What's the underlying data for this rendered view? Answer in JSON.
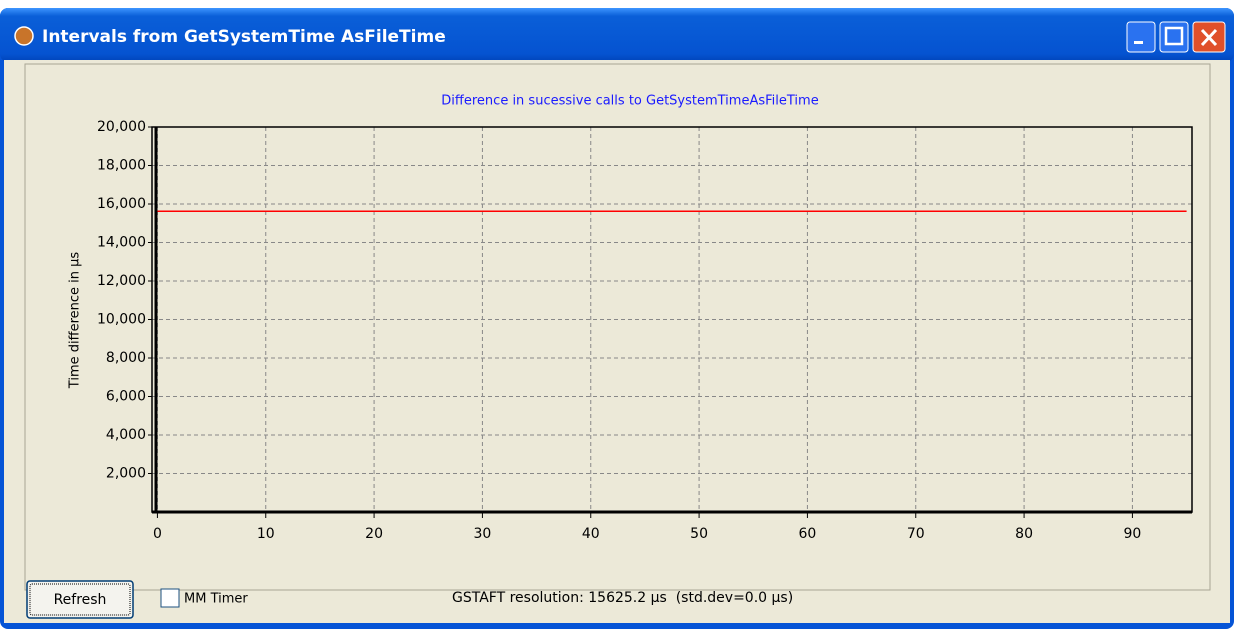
{
  "window": {
    "title": "Intervals from GetSystemTime AsFileTime"
  },
  "chart_data": {
    "type": "line",
    "title": "Difference in sucessive calls to GetSystemTimeAsFileTime",
    "y_label": "Time difference in µs",
    "x": [
      0,
      1,
      2,
      3,
      4,
      5,
      6,
      7,
      8,
      9,
      10,
      11,
      12,
      13,
      14,
      15,
      16,
      17,
      18,
      19,
      20,
      21,
      22,
      23,
      24,
      25,
      26,
      27,
      28,
      29,
      30,
      31,
      32,
      33,
      34,
      35,
      36,
      37,
      38,
      39,
      40,
      41,
      42,
      43,
      44,
      45,
      46,
      47,
      48,
      49,
      50,
      51,
      52,
      53,
      54,
      55,
      56,
      57,
      58,
      59,
      60,
      61,
      62,
      63,
      64,
      65,
      66,
      67,
      68,
      69,
      70,
      71,
      72,
      73,
      74,
      75,
      76,
      77,
      78,
      79,
      80,
      81,
      82,
      83,
      84,
      85,
      86,
      87,
      88,
      89,
      90,
      91,
      92,
      93,
      94,
      95
    ],
    "series": [
      {
        "color": "#ff0000",
        "values": [
          15625.2,
          15625.2,
          15625.2,
          15625.2,
          15625.2,
          15625.2,
          15625.2,
          15625.2,
          15625.2,
          15625.2,
          15625.2,
          15625.2,
          15625.2,
          15625.2,
          15625.2,
          15625.2,
          15625.2,
          15625.2,
          15625.2,
          15625.2,
          15625.2,
          15625.2,
          15625.2,
          15625.2,
          15625.2,
          15625.2,
          15625.2,
          15625.2,
          15625.2,
          15625.2,
          15625.2,
          15625.2,
          15625.2,
          15625.2,
          15625.2,
          15625.2,
          15625.2,
          15625.2,
          15625.2,
          15625.2,
          15625.2,
          15625.2,
          15625.2,
          15625.2,
          15625.2,
          15625.2,
          15625.2,
          15625.2,
          15625.2,
          15625.2,
          15625.2,
          15625.2,
          15625.2,
          15625.2,
          15625.2,
          15625.2,
          15625.2,
          15625.2,
          15625.2,
          15625.2,
          15625.2,
          15625.2,
          15625.2,
          15625.2,
          15625.2,
          15625.2,
          15625.2,
          15625.2,
          15625.2,
          15625.2,
          15625.2,
          15625.2,
          15625.2,
          15625.2,
          15625.2,
          15625.2,
          15625.2,
          15625.2,
          15625.2,
          15625.2,
          15625.2,
          15625.2,
          15625.2,
          15625.2,
          15625.2,
          15625.2,
          15625.2,
          15625.2,
          15625.2,
          15625.2,
          15625.2,
          15625.2,
          15625.2,
          15625.2,
          15625.2,
          15625.2
        ]
      }
    ],
    "xlim": [
      -0.5,
      95.5
    ],
    "xticks": [
      0,
      10,
      20,
      30,
      40,
      50,
      60,
      70,
      80,
      90
    ],
    "ylim": [
      0,
      20000
    ],
    "yticks": [
      {
        "value": 2000,
        "label": "2,000"
      },
      {
        "value": 4000,
        "label": "4,000"
      },
      {
        "value": 6000,
        "label": "6,000"
      },
      {
        "value": 8000,
        "label": "8,000"
      },
      {
        "value": 10000,
        "label": "10,000"
      },
      {
        "value": 12000,
        "label": "12,000"
      },
      {
        "value": 14000,
        "label": "14,000"
      },
      {
        "value": 16000,
        "label": "16,000"
      },
      {
        "value": 18000,
        "label": "18,000"
      },
      {
        "value": 20000,
        "label": "20,000"
      }
    ],
    "grid": true
  },
  "controls": {
    "refresh_button": "Refresh",
    "checkbox_label": "MM Timer",
    "status": "GSTAFT resolution: 15625.2 µs  (std.dev=0.0 µs)"
  }
}
